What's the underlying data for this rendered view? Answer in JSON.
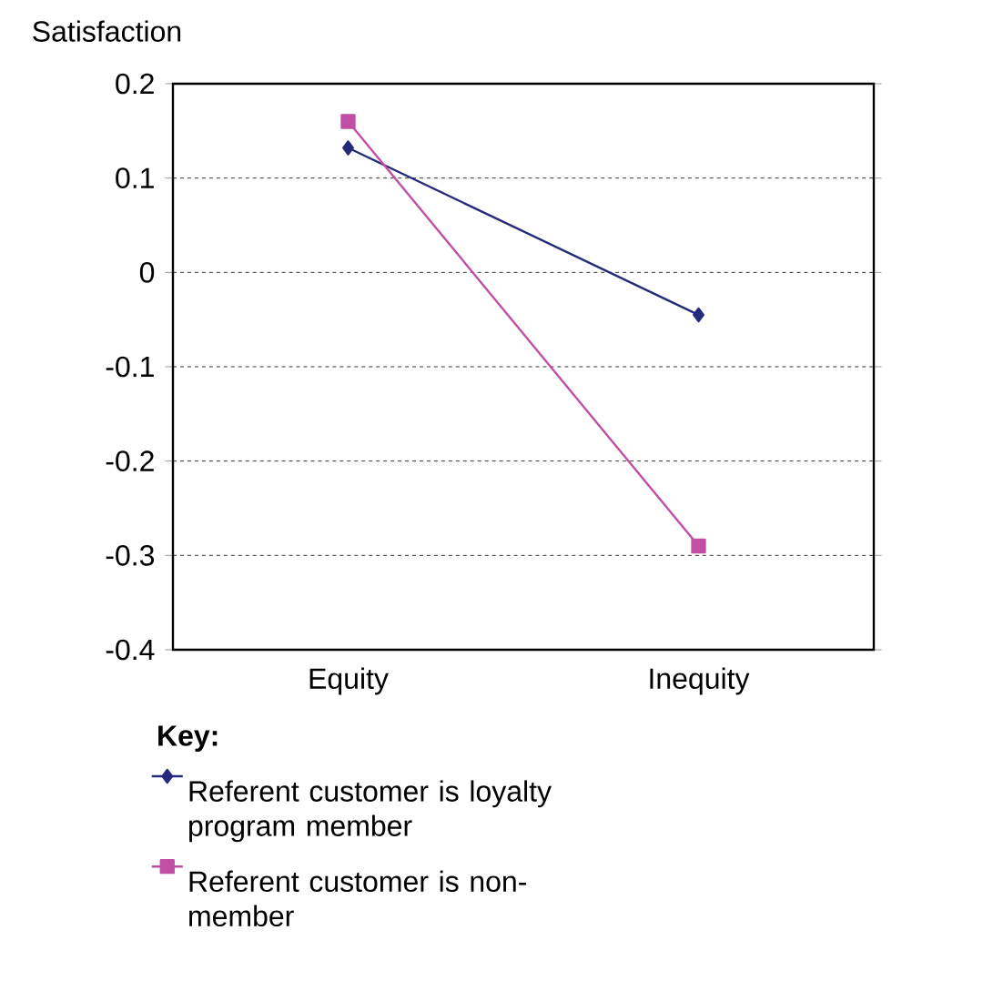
{
  "chart_data": {
    "type": "line",
    "ylabel": "Satisfaction",
    "legend_title": "Key:",
    "categories": [
      "Equity",
      "Inequity"
    ],
    "series": [
      {
        "name": "Referent customer is loyalty program member",
        "color": "#262a7a",
        "marker": "diamond",
        "values": [
          0.132,
          -0.045
        ]
      },
      {
        "name": "Referent customer is non-member",
        "color": "#c04fa3",
        "marker": "square",
        "values": [
          0.16,
          -0.29
        ]
      }
    ],
    "ylim": [
      -0.4,
      0.2
    ],
    "yticks": [
      -0.4,
      -0.3,
      -0.2,
      -0.1,
      0,
      0.1,
      0.2
    ],
    "grid": "y",
    "legend": "bottom",
    "line_style": "solid"
  }
}
